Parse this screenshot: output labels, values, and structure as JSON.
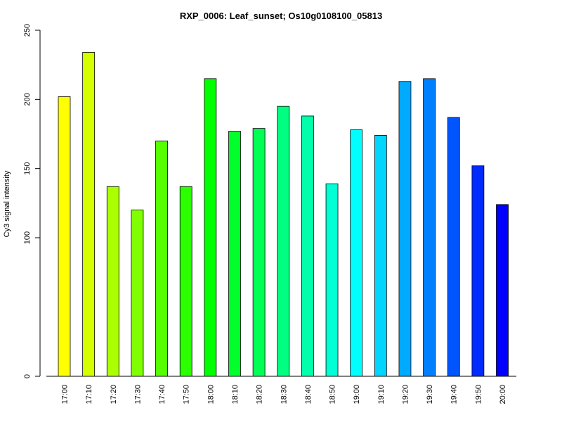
{
  "chart_data": {
    "type": "bar",
    "title": "RXP_0006: Leaf_sunset; Os10g0108100_05813",
    "xlabel": "",
    "ylabel": "Cy3 signal intensity",
    "y_ticks": [
      0,
      100,
      150,
      200,
      250
    ],
    "categories": [
      "17:00",
      "17:10",
      "17:20",
      "17:30",
      "17:40",
      "17:50",
      "18:00",
      "18:10",
      "18:20",
      "18:30",
      "18:40",
      "18:50",
      "19:00",
      "19:10",
      "19:20",
      "19:30",
      "19:40",
      "19:50",
      "20:00"
    ],
    "values": [
      202,
      234,
      137,
      120,
      170,
      137,
      215,
      177,
      179,
      195,
      188,
      139,
      178,
      174,
      213,
      215,
      187,
      152,
      124
    ],
    "colors": [
      "#FFFF00",
      "#D5FF00",
      "#AAFF00",
      "#80FF00",
      "#55FF00",
      "#2BFF00",
      "#00FF00",
      "#00FF2B",
      "#00FF55",
      "#00FF80",
      "#00FFAA",
      "#00FFD5",
      "#00FFFF",
      "#00D5FF",
      "#00AAFF",
      "#0080FF",
      "#0055FF",
      "#002BFF",
      "#0000FF"
    ],
    "grid": false,
    "legend": "none"
  }
}
